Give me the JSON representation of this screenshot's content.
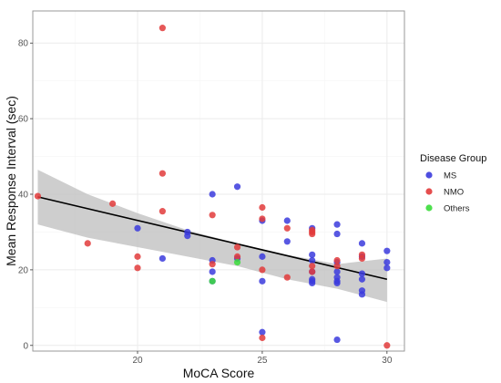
{
  "chart_data": {
    "type": "scatter",
    "xlabel": "MoCA Score",
    "ylabel": "Mean Response Interval (sec)",
    "xlim": [
      15.8,
      30.7
    ],
    "ylim": [
      -1.5,
      88.5
    ],
    "x_ticks": [
      20,
      25,
      30
    ],
    "y_ticks": [
      0,
      20,
      40,
      60,
      80
    ],
    "grid": true,
    "legend": {
      "title": "Disease Group",
      "position": "right",
      "entries": [
        "MS",
        "NMO",
        "Others"
      ]
    },
    "colors": {
      "MS": "#3b3bdd",
      "NMO": "#e23b3b",
      "Others": "#3bdd3b",
      "trend_line": "#000000",
      "confidence_band": "#bdbdbd",
      "panel_border": "#999999",
      "grid_major": "#ebebeb",
      "grid_minor": "#f5f5f5"
    },
    "series": [
      {
        "name": "MS",
        "points": [
          [
            20,
            31
          ],
          [
            21,
            23
          ],
          [
            22,
            30
          ],
          [
            22,
            29
          ],
          [
            23,
            40
          ],
          [
            23,
            22.5
          ],
          [
            23,
            19.5
          ],
          [
            23,
            17
          ],
          [
            24,
            42
          ],
          [
            24,
            23
          ],
          [
            25,
            33
          ],
          [
            25,
            23.5
          ],
          [
            25,
            17
          ],
          [
            25,
            3.5
          ],
          [
            26,
            33
          ],
          [
            26,
            27.5
          ],
          [
            27,
            31
          ],
          [
            27,
            24
          ],
          [
            27,
            22.5
          ],
          [
            27,
            19.5
          ],
          [
            27,
            17.5
          ],
          [
            27,
            17
          ],
          [
            27,
            16.5
          ],
          [
            28,
            32
          ],
          [
            28,
            29.5
          ],
          [
            28,
            22
          ],
          [
            28,
            19.5
          ],
          [
            28,
            18
          ],
          [
            28,
            17
          ],
          [
            28,
            16.5
          ],
          [
            28,
            1.5
          ],
          [
            29,
            27
          ],
          [
            29,
            23.5
          ],
          [
            29,
            19
          ],
          [
            29,
            17.5
          ],
          [
            29,
            14.5
          ],
          [
            29,
            13.5
          ],
          [
            30,
            25
          ],
          [
            30,
            22
          ],
          [
            30,
            20.5
          ]
        ]
      },
      {
        "name": "NMO",
        "points": [
          [
            16,
            39.5
          ],
          [
            18,
            27
          ],
          [
            19,
            37.5
          ],
          [
            20,
            23.5
          ],
          [
            20,
            20.5
          ],
          [
            21,
            84
          ],
          [
            21,
            45.5
          ],
          [
            21,
            35.5
          ],
          [
            23,
            34.5
          ],
          [
            23,
            21.5
          ],
          [
            24,
            26
          ],
          [
            24,
            23.5
          ],
          [
            25,
            36.5
          ],
          [
            25,
            33.5
          ],
          [
            25,
            20
          ],
          [
            25,
            2
          ],
          [
            26,
            31
          ],
          [
            26,
            18
          ],
          [
            27,
            30.5
          ],
          [
            27,
            30
          ],
          [
            27,
            29.5
          ],
          [
            27,
            21
          ],
          [
            27,
            19.5
          ],
          [
            28,
            22.5
          ],
          [
            28,
            21
          ],
          [
            29,
            24
          ],
          [
            29,
            23
          ],
          [
            30,
            0
          ]
        ]
      },
      {
        "name": "Others",
        "points": [
          [
            23,
            17
          ],
          [
            24,
            22
          ]
        ]
      }
    ],
    "trend_line": {
      "x": [
        16,
        30
      ],
      "y": [
        39.3,
        17.5
      ]
    },
    "confidence_band": {
      "x": [
        16,
        18,
        20,
        22,
        24,
        26,
        28,
        30
      ],
      "lower": [
        32,
        28.5,
        26,
        23.5,
        21,
        17.5,
        15,
        11.5
      ],
      "upper": [
        46.5,
        40,
        35,
        30.5,
        27,
        24,
        21.5,
        23
      ]
    }
  }
}
